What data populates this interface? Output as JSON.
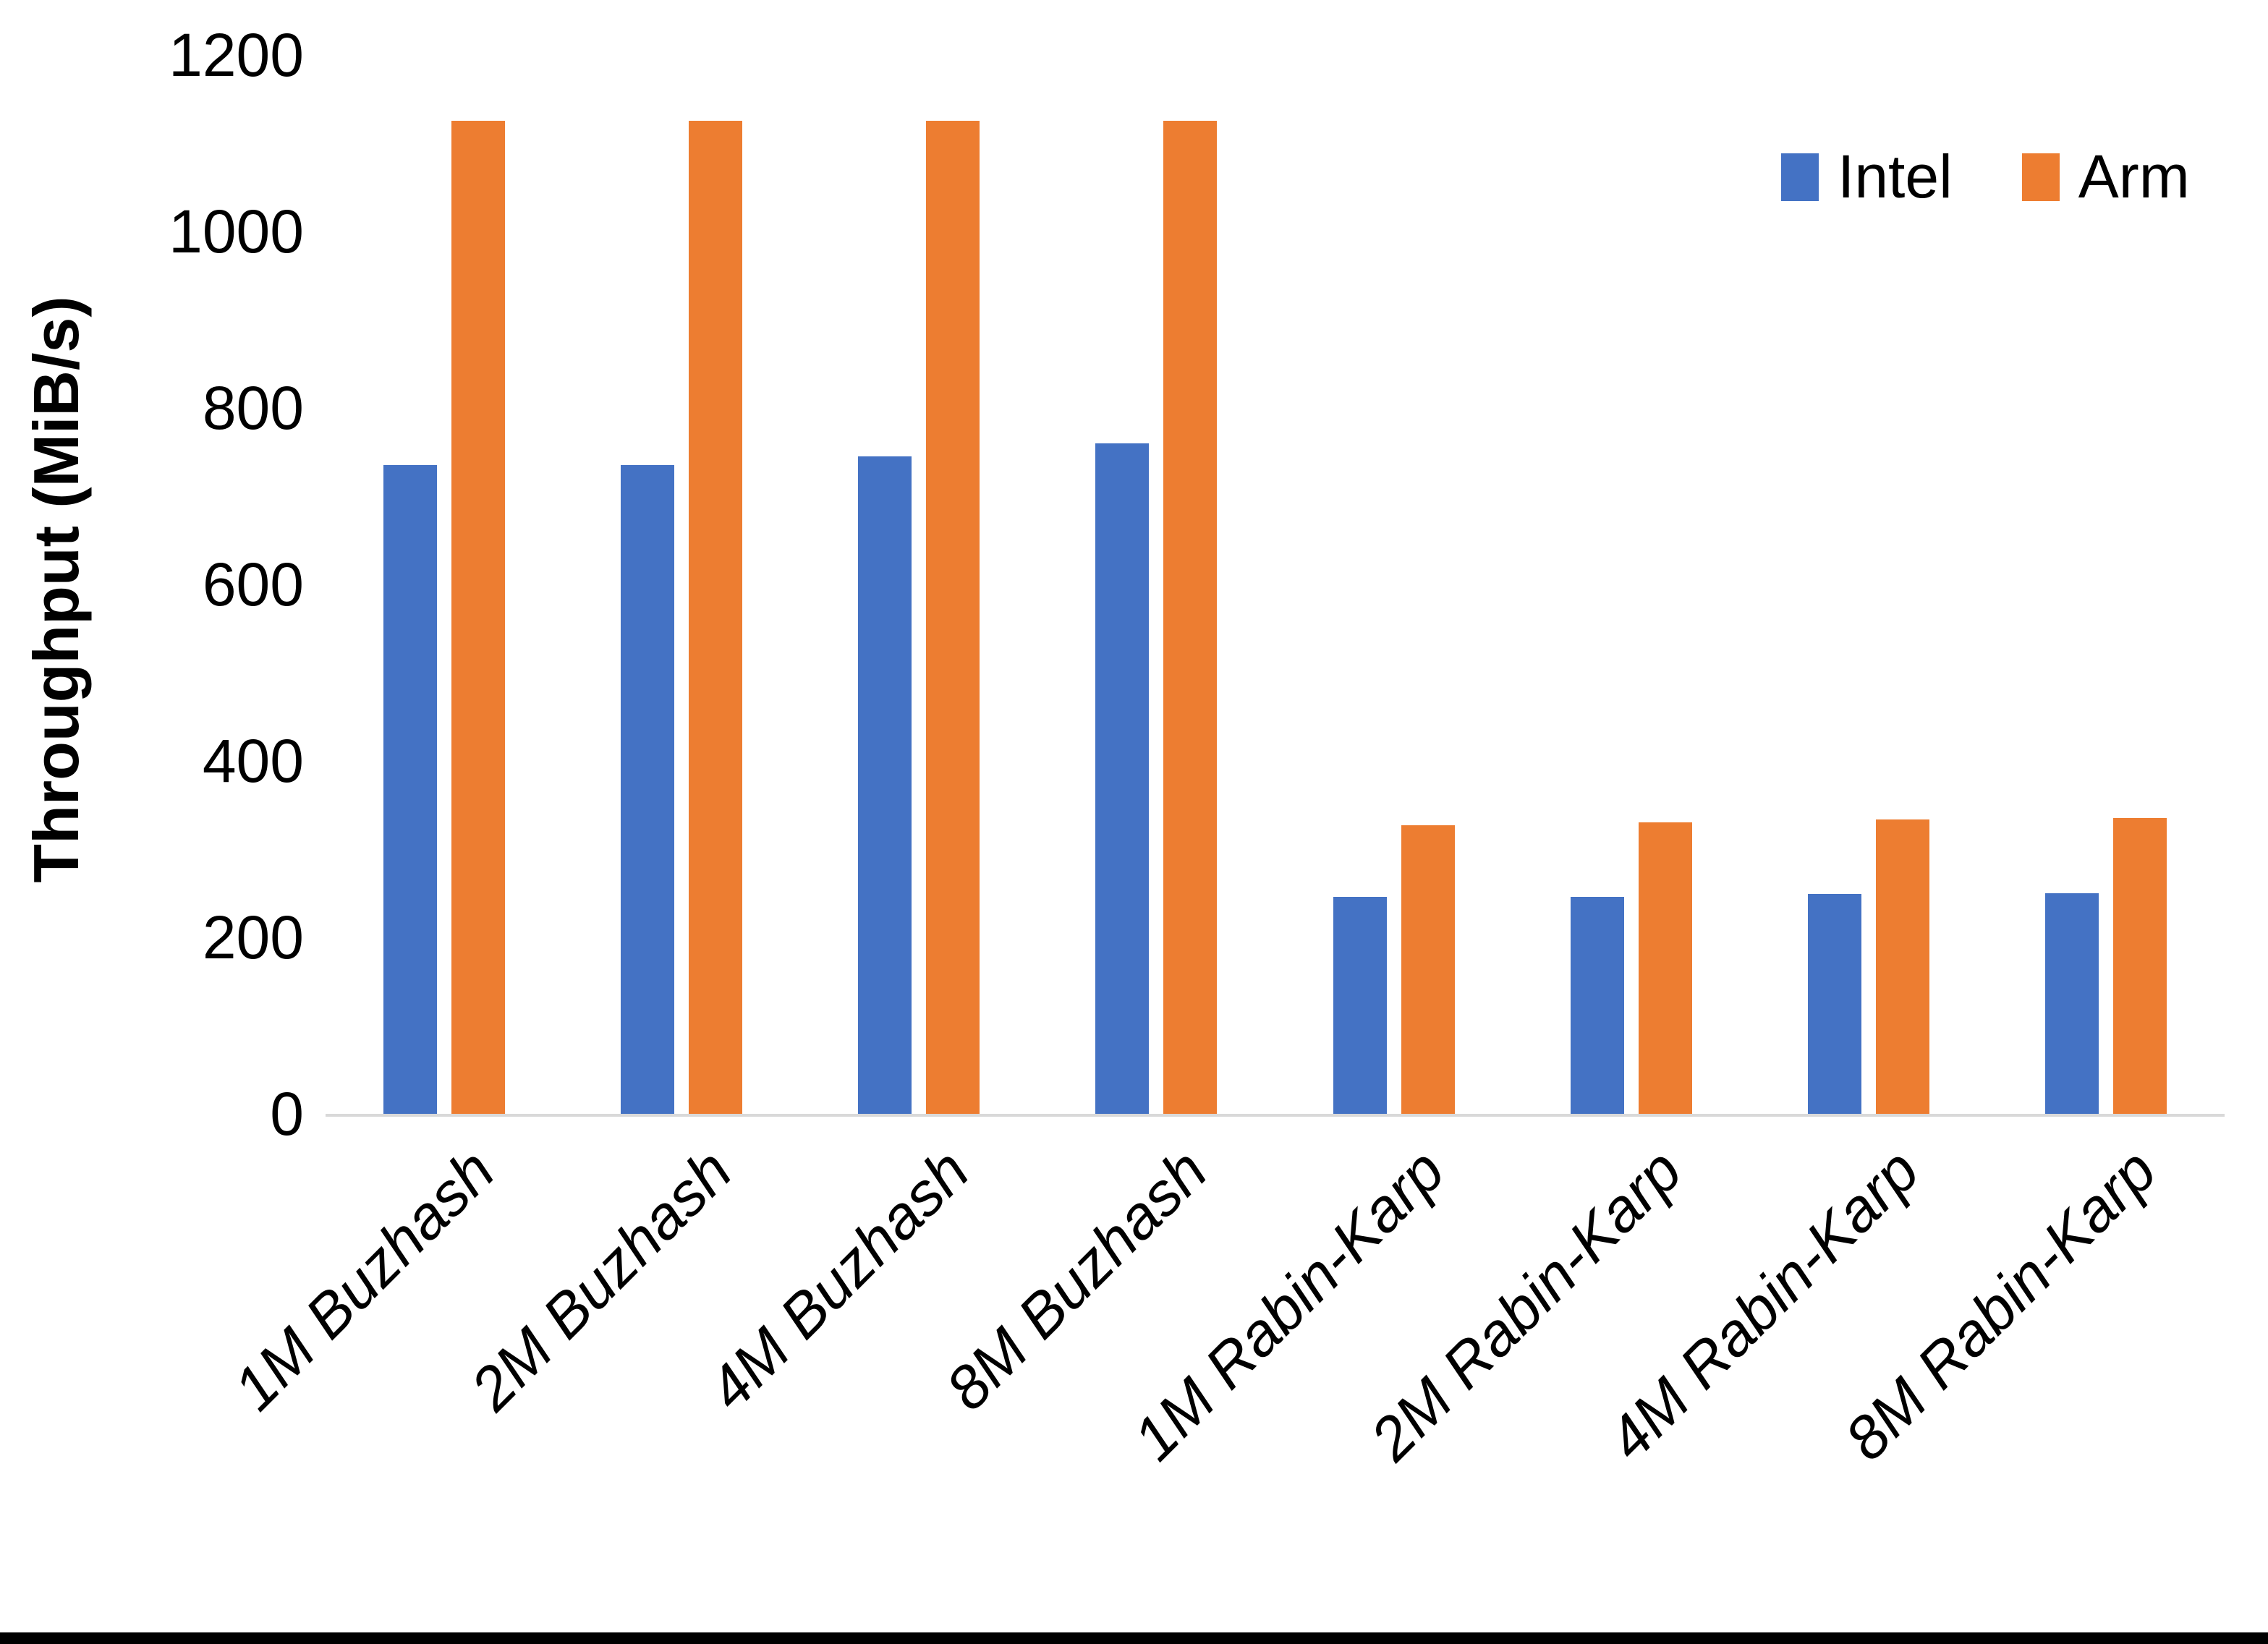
{
  "chart_data": {
    "type": "bar",
    "title": "",
    "xlabel": "",
    "ylabel": "Throughput (MiB/s)",
    "ylim": [
      0,
      1200
    ],
    "yticks": [
      "0",
      "200",
      "400",
      "600",
      "800",
      "1000",
      "1200"
    ],
    "grid": false,
    "legend_position": "top-right",
    "categories": [
      "1M Buzhash",
      "2M Buzhash",
      "4M Buzhash",
      "8M Buzhash",
      "1M Rabin-Karp",
      "2M Rabin-Karp",
      "4M Rabin-Karp",
      "8M Rabin-Karp"
    ],
    "series": [
      {
        "name": "Intel",
        "color": "#4472C4",
        "values": [
          735,
          735,
          745,
          760,
          246,
          246,
          249,
          250
        ]
      },
      {
        "name": "Arm",
        "color": "#ED7D31",
        "values": [
          1125,
          1125,
          1125,
          1125,
          327,
          330,
          334,
          335
        ]
      }
    ]
  },
  "colors": {
    "axis_line": "#D9D9D9",
    "text": "#000000",
    "background": "#FFFFFF",
    "bottom_edge_bar": "#000000"
  }
}
